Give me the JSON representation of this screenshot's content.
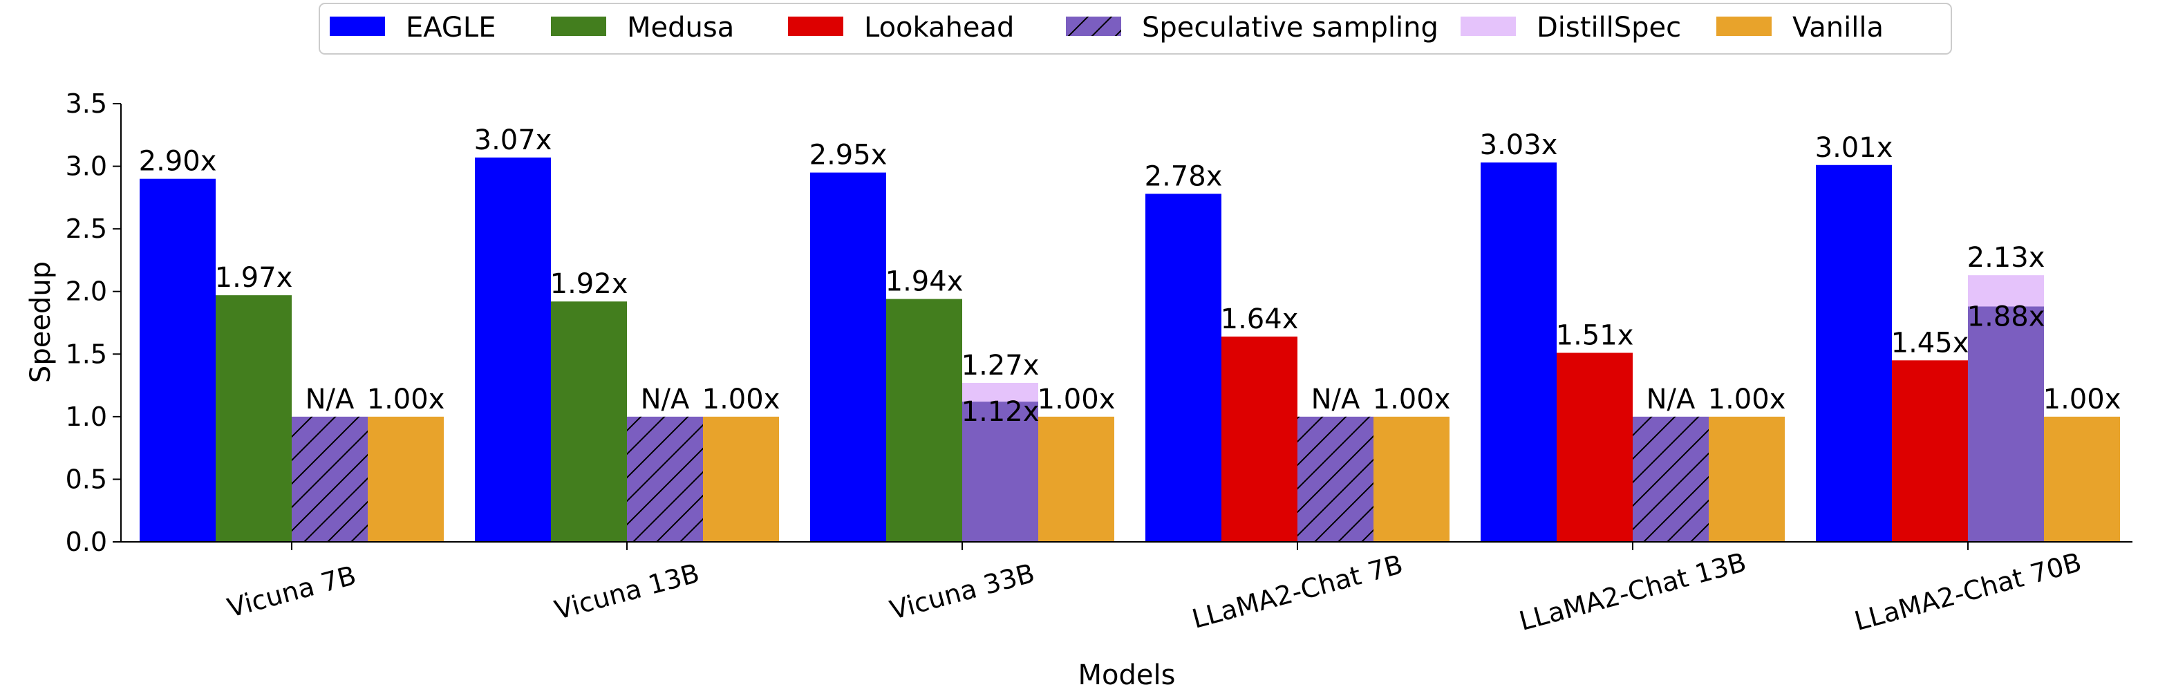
{
  "chart_data": {
    "type": "bar",
    "xlabel": "Models",
    "ylabel": "Speedup",
    "ylim": [
      0,
      3.5
    ],
    "yticks": [
      "0.0",
      "0.5",
      "1.0",
      "1.5",
      "2.0",
      "2.5",
      "3.0",
      "3.5"
    ],
    "grid": false,
    "legend_position": "top-center",
    "categories": [
      "Vicuna 7B",
      "Vicuna 13B",
      "Vicuna 33B",
      "LLaMA2-Chat 7B",
      "LLaMA2-Chat 13B",
      "LLaMA2-Chat 70B"
    ],
    "legend": [
      {
        "name": "EAGLE",
        "color": "#0000ff",
        "hatch": false
      },
      {
        "name": "Medusa",
        "color": "#437e1e",
        "hatch": false
      },
      {
        "name": "Lookahead",
        "color": "#dd0000",
        "hatch": false
      },
      {
        "name": "Speculative sampling",
        "color": "#7b5ec0",
        "hatch": true
      },
      {
        "name": "DistillSpec",
        "color": "#e5c3fb",
        "hatch": false
      },
      {
        "name": "Vanilla",
        "color": "#e8a32b",
        "hatch": false
      }
    ],
    "groups": [
      {
        "category": "Vicuna 7B",
        "bars": [
          {
            "method": "EAGLE",
            "value": 2.9,
            "label": "2.90x"
          },
          {
            "method": "Medusa",
            "value": 1.97,
            "label": "1.97x"
          },
          {
            "method": "Speculative sampling",
            "value": 1.0,
            "label": "N/A",
            "hatch": true
          },
          {
            "method": "Vanilla",
            "value": 1.0,
            "label": "1.00x"
          }
        ]
      },
      {
        "category": "Vicuna 13B",
        "bars": [
          {
            "method": "EAGLE",
            "value": 3.07,
            "label": "3.07x"
          },
          {
            "method": "Medusa",
            "value": 1.92,
            "label": "1.92x"
          },
          {
            "method": "Speculative sampling",
            "value": 1.0,
            "label": "N/A",
            "hatch": true
          },
          {
            "method": "Vanilla",
            "value": 1.0,
            "label": "1.00x"
          }
        ]
      },
      {
        "category": "Vicuna 33B",
        "bars": [
          {
            "method": "EAGLE",
            "value": 2.95,
            "label": "2.95x"
          },
          {
            "method": "Medusa",
            "value": 1.94,
            "label": "1.94x"
          },
          {
            "method": "Speculative sampling",
            "value": 1.12,
            "label": "1.12x",
            "stack": {
              "method": "DistillSpec",
              "value": 1.27,
              "label": "1.27x"
            }
          },
          {
            "method": "Vanilla",
            "value": 1.0,
            "label": "1.00x"
          }
        ]
      },
      {
        "category": "LLaMA2-Chat 7B",
        "bars": [
          {
            "method": "EAGLE",
            "value": 2.78,
            "label": "2.78x"
          },
          {
            "method": "Lookahead",
            "value": 1.64,
            "label": "1.64x"
          },
          {
            "method": "Speculative sampling",
            "value": 1.0,
            "label": "N/A",
            "hatch": true
          },
          {
            "method": "Vanilla",
            "value": 1.0,
            "label": "1.00x"
          }
        ]
      },
      {
        "category": "LLaMA2-Chat 13B",
        "bars": [
          {
            "method": "EAGLE",
            "value": 3.03,
            "label": "3.03x"
          },
          {
            "method": "Lookahead",
            "value": 1.51,
            "label": "1.51x"
          },
          {
            "method": "Speculative sampling",
            "value": 1.0,
            "label": "N/A",
            "hatch": true
          },
          {
            "method": "Vanilla",
            "value": 1.0,
            "label": "1.00x"
          }
        ]
      },
      {
        "category": "LLaMA2-Chat 70B",
        "bars": [
          {
            "method": "EAGLE",
            "value": 3.01,
            "label": "3.01x"
          },
          {
            "method": "Lookahead",
            "value": 1.45,
            "label": "1.45x"
          },
          {
            "method": "Speculative sampling",
            "value": 1.88,
            "label": "1.88x",
            "stack": {
              "method": "DistillSpec",
              "value": 2.13,
              "label": "2.13x"
            }
          },
          {
            "method": "Vanilla",
            "value": 1.0,
            "label": "1.00x"
          }
        ]
      }
    ]
  }
}
